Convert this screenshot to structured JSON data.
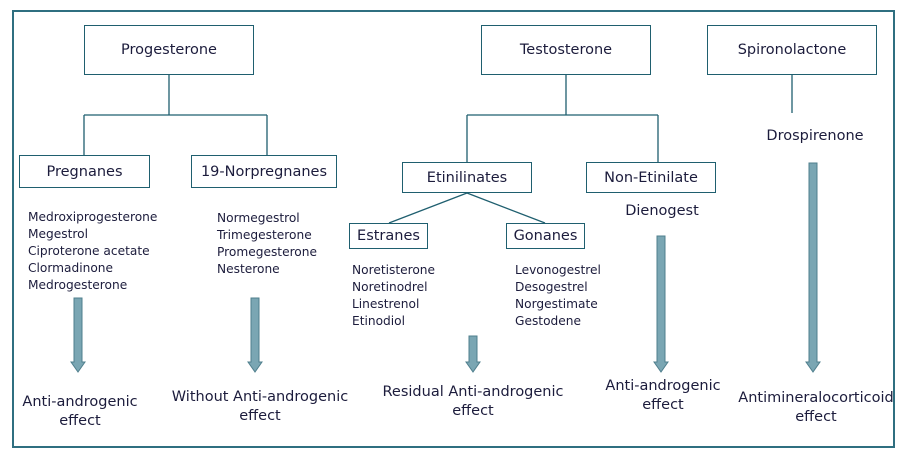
{
  "roots": {
    "progesterone": "Progesterone",
    "testosterone": "Testosterone",
    "spironolactone": "Spironolactone"
  },
  "groups": {
    "pregnanes": "Pregnanes",
    "norpregnanes": "19-Norpregnanes",
    "etinilinates": "Etinilinates",
    "non_etinilate": "Non-Etinilate",
    "estranes": "Estranes",
    "gonanes": "Gonanes"
  },
  "lists": {
    "pregnanes": [
      "Medroxiprogesterone",
      "Megestrol",
      "Ciproterone acetate",
      "Clormadinone",
      "Medrogesterone"
    ],
    "norpregnanes": [
      "Normegestrol",
      "Trimegesterone",
      "Promegesterone",
      "Nesterone"
    ],
    "estranes": [
      "Noretisterone",
      "Noretinodrel",
      "Linestrenol",
      "Etinodiol"
    ],
    "gonanes": [
      "Levonogestrel",
      "Desogestrel",
      "Norgestimate",
      "Gestodene"
    ]
  },
  "singles": {
    "dienogest": "Dienogest",
    "drospirenone": "Drospirenone"
  },
  "effects": {
    "pregnanes": [
      "Anti-androgenic",
      "effect"
    ],
    "norpregnanes": [
      "Without Anti-androgenic",
      "effect"
    ],
    "etinilinates": [
      "Residual Anti-androgenic",
      "effect"
    ],
    "dienogest": [
      "Anti-androgenic",
      "effect"
    ],
    "drospirenone": [
      "Antimineralocorticoid",
      "effect"
    ]
  },
  "colors": {
    "border": "#1f5f6f",
    "arrow": "#7aa6b3",
    "text": "#1c1c3c"
  }
}
